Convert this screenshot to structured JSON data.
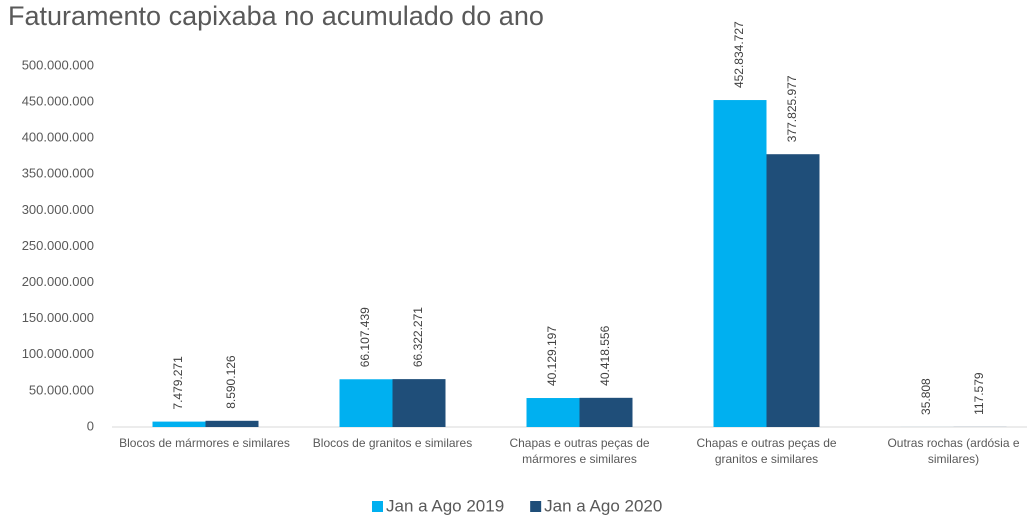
{
  "chart_data": {
    "type": "bar",
    "title": "Faturamento capixaba no acumulado do ano",
    "categories": [
      "Blocos de mármores e similares",
      "Blocos de granitos e similares",
      "Chapas e outras peças de mármores e similares",
      "Chapas e outras peças de granitos e similares",
      "Outras rochas (ardósia e similares)"
    ],
    "series": [
      {
        "name": "Jan a Ago 2019",
        "color": "#00b0f0",
        "values": [
          7479271,
          66107439,
          40129197,
          452834727,
          35808
        ],
        "value_labels": [
          "7.479.271",
          "66.107.439",
          "40.129.197",
          "452.834.727",
          "35.808"
        ]
      },
      {
        "name": "Jan a Ago 2020",
        "color": "#1f4e79",
        "values": [
          8590126,
          66322271,
          40418556,
          377825977,
          117579
        ],
        "value_labels": [
          "8.590.126",
          "66.322.271",
          "40.418.556",
          "377.825.977",
          "117.579"
        ]
      }
    ],
    "ylim": [
      0,
      500000000
    ],
    "yticks": [
      0,
      {
        "value": 50000000,
        "label": "50.000.000"
      },
      {
        "value": 100000000,
        "label": "100.000.000"
      },
      {
        "value": 150000000,
        "label": "150.000.000"
      },
      {
        "value": 200000000,
        "label": "200.000.000"
      },
      {
        "value": 250000000,
        "label": "250.000.000"
      },
      {
        "value": 300000000,
        "label": "300.000.000"
      },
      {
        "value": 350000000,
        "label": "350.000.000"
      },
      {
        "value": 400000000,
        "label": "400.000.000"
      },
      {
        "value": 450000000,
        "label": "450.000.000"
      },
      {
        "value": 500000000,
        "label": "500.000.000"
      }
    ],
    "grid": false,
    "legend": "bottom"
  }
}
